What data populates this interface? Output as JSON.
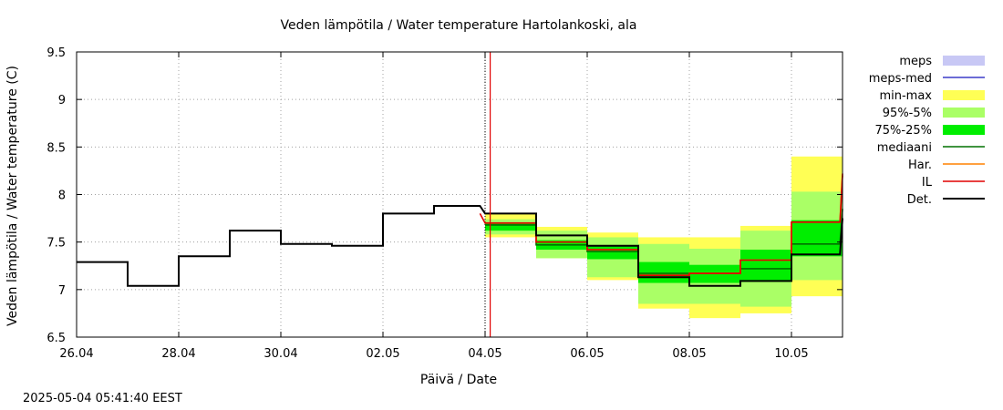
{
  "timestamp": "2025-05-04 05:41:40 EEST",
  "chart_data": {
    "type": "line",
    "title": "Veden lämpötila / Water temperature Hartolankoski, ala",
    "xlabel": "Päivä / Date",
    "ylabel": "Veden lämpötila / Water temperature (C)",
    "xlim": [
      0,
      15
    ],
    "ylim": [
      6.5,
      9.5
    ],
    "x_ticks": [
      {
        "x": 0,
        "label": "26.04"
      },
      {
        "x": 2,
        "label": "28.04"
      },
      {
        "x": 4,
        "label": "30.04"
      },
      {
        "x": 6,
        "label": "02.05"
      },
      {
        "x": 8,
        "label": "04.05"
      },
      {
        "x": 10,
        "label": "06.05"
      },
      {
        "x": 12,
        "label": "08.05"
      },
      {
        "x": 14,
        "label": "10.05"
      }
    ],
    "y_ticks": [
      {
        "y": 6.5,
        "label": "6.5"
      },
      {
        "y": 7,
        "label": "7"
      },
      {
        "y": 7.5,
        "label": "7.5"
      },
      {
        "y": 8,
        "label": "8"
      },
      {
        "y": 8.5,
        "label": "8.5"
      },
      {
        "y": 9,
        "label": "9"
      },
      {
        "y": 9.5,
        "label": "9.5"
      }
    ],
    "current_time_x": 8.1,
    "forecast_start_x": 8.0,
    "legend": [
      {
        "key": "meps",
        "label": "meps",
        "kind": "box",
        "color": "#c8c8f5"
      },
      {
        "key": "meps_med",
        "label": "meps-med",
        "kind": "line",
        "color": "#3c3cc8"
      },
      {
        "key": "min_max",
        "label": "min-max",
        "kind": "box",
        "color": "#ffff55"
      },
      {
        "key": "p95_5",
        "label": "95%-5%",
        "kind": "box",
        "color": "#aaff66"
      },
      {
        "key": "p75_25",
        "label": "75%-25%",
        "kind": "box",
        "color": "#00ee00"
      },
      {
        "key": "mediaani",
        "label": "mediaani",
        "kind": "line",
        "color": "#007000"
      },
      {
        "key": "har",
        "label": "Har.",
        "kind": "line",
        "color": "#ff8000"
      },
      {
        "key": "il",
        "label": "IL",
        "kind": "line",
        "color": "#e00000"
      },
      {
        "key": "det",
        "label": "Det.",
        "kind": "line",
        "color": "#000000"
      }
    ],
    "bands": {
      "periods": [
        [
          8,
          9
        ],
        [
          9,
          10
        ],
        [
          10,
          11
        ],
        [
          11,
          12
        ],
        [
          12,
          13
        ],
        [
          13,
          14
        ],
        [
          14,
          15
        ]
      ],
      "min_max": [
        [
          7.55,
          7.8
        ],
        [
          7.33,
          7.66
        ],
        [
          7.1,
          7.6
        ],
        [
          6.8,
          7.55
        ],
        [
          6.7,
          7.55
        ],
        [
          6.75,
          7.67
        ],
        [
          6.93,
          8.4
        ]
      ],
      "p95_5": [
        [
          7.58,
          7.74
        ],
        [
          7.33,
          7.62
        ],
        [
          7.13,
          7.55
        ],
        [
          6.85,
          7.48
        ],
        [
          6.85,
          7.43
        ],
        [
          6.82,
          7.62
        ],
        [
          7.1,
          8.03
        ]
      ],
      "p75_25": [
        [
          7.62,
          7.7
        ],
        [
          7.42,
          7.52
        ],
        [
          7.32,
          7.46
        ],
        [
          7.07,
          7.29
        ],
        [
          7.07,
          7.26
        ],
        [
          7.08,
          7.42
        ],
        [
          7.35,
          7.73
        ]
      ]
    },
    "series": [
      {
        "name": "mediaani",
        "color": "#007000",
        "x": [
          8.0,
          9.0,
          9.0,
          10.0,
          10.0,
          11.0,
          11.0,
          12.0,
          12.0,
          13.0,
          13.0,
          14.0,
          14.0,
          14.95,
          15.0
        ],
        "y": [
          7.68,
          7.68,
          7.47,
          7.47,
          7.4,
          7.4,
          7.17,
          7.17,
          7.17,
          7.17,
          7.22,
          7.22,
          7.48,
          7.48,
          7.85
        ]
      },
      {
        "name": "Har.",
        "color": "#ff8000",
        "x": [
          8.0,
          9.0,
          9.0,
          10.0,
          10.0,
          11.0,
          11.0,
          12.0,
          12.0,
          13.0,
          13.0,
          14.0,
          14.0,
          14.95,
          15.0
        ],
        "y": [
          7.7,
          7.7,
          7.5,
          7.5,
          7.42,
          7.42,
          7.15,
          7.15,
          7.17,
          7.17,
          7.31,
          7.31,
          7.71,
          7.71,
          8.2
        ]
      },
      {
        "name": "IL",
        "color": "#e00000",
        "x": [
          7.9,
          8.0,
          9.0,
          9.0,
          10.0,
          10.0,
          11.0,
          11.0,
          12.0,
          12.0,
          13.0,
          13.0,
          14.0,
          14.0,
          14.95,
          15.0
        ],
        "y": [
          7.8,
          7.7,
          7.7,
          7.5,
          7.5,
          7.42,
          7.42,
          7.15,
          7.15,
          7.17,
          7.17,
          7.31,
          7.31,
          7.71,
          7.71,
          8.22
        ]
      },
      {
        "name": "Det.",
        "color": "#000000",
        "x": [
          0,
          1.0,
          1.0,
          2.0,
          2.0,
          3.0,
          3.0,
          4.0,
          4.0,
          5.0,
          5.0,
          6.0,
          6.0,
          7.0,
          7.0,
          7.9,
          8.0,
          9.0,
          9.0,
          10.0,
          10.0,
          11.0,
          11.0,
          12.0,
          12.0,
          13.0,
          13.0,
          14.0,
          14.0,
          14.95,
          15.0
        ],
        "y": [
          7.29,
          7.29,
          7.04,
          7.04,
          7.35,
          7.35,
          7.62,
          7.62,
          7.48,
          7.48,
          7.46,
          7.46,
          7.8,
          7.8,
          7.88,
          7.88,
          7.8,
          7.8,
          7.57,
          7.57,
          7.46,
          7.46,
          7.13,
          7.13,
          7.04,
          7.04,
          7.09,
          7.09,
          7.37,
          7.37,
          7.75
        ]
      }
    ]
  }
}
